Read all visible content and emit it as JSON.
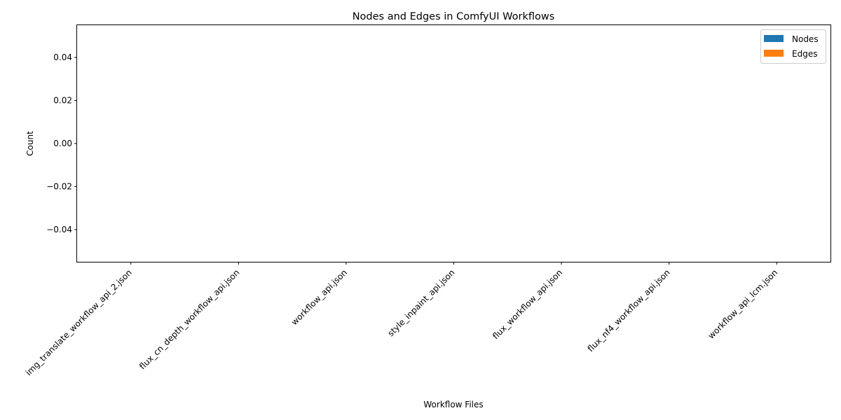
{
  "chart_data": {
    "type": "bar",
    "title": "Nodes and Edges in ComfyUI Workflows",
    "xlabel": "Workflow Files",
    "ylabel": "Count",
    "categories": [
      "img_translate_workflow_api_2.json",
      "flux_cn_depth_workflow_api.json",
      "workflow_api.json",
      "style_inpaint_api.json",
      "flux_workflow_api.json",
      "flux_nf4_workflow_api.json",
      "workflow_api_lcm.json"
    ],
    "series": [
      {
        "name": "Nodes",
        "color": "#1f77b4",
        "values": [
          0,
          0,
          0,
          0,
          0,
          0,
          0
        ]
      },
      {
        "name": "Edges",
        "color": "#ff7f0e",
        "values": [
          0,
          0,
          0,
          0,
          0,
          0,
          0
        ]
      }
    ],
    "ylim": [
      -0.055,
      0.055
    ],
    "yticks": [
      0.04,
      0.02,
      0.0,
      -0.02,
      -0.04
    ],
    "ytick_labels": [
      "0.04",
      "0.02",
      "0.00",
      "−0.02",
      "−0.04"
    ],
    "xtick_rotation": 45,
    "grid": false,
    "legend": {
      "position": "top-right",
      "items": [
        {
          "label": "Nodes",
          "color": "#1f77b4"
        },
        {
          "label": "Edges",
          "color": "#ff7f0e"
        }
      ]
    }
  }
}
